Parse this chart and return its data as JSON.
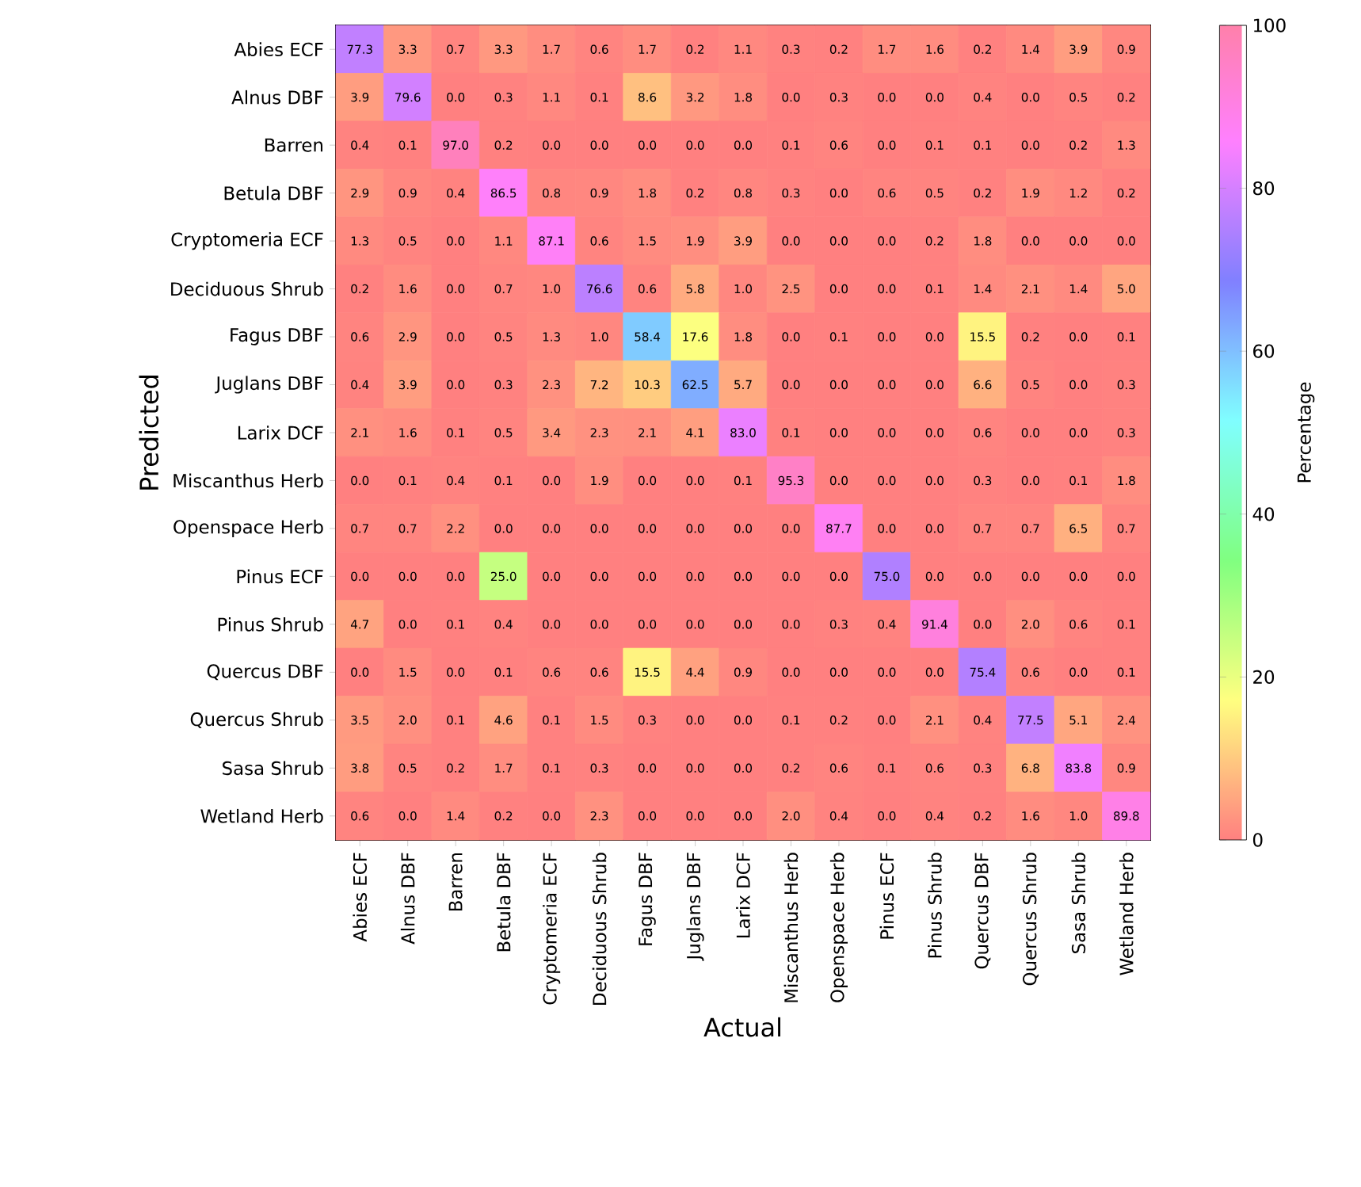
{
  "chart_data": {
    "type": "heatmap",
    "xlabel": "Actual",
    "ylabel": "Predicted",
    "clabel": "Percentage",
    "categories": [
      "Abies ECF",
      "Alnus DBF",
      "Barren",
      "Betula DBF",
      "Cryptomeria ECF",
      "Deciduous Shrub",
      "Fagus DBF",
      "Juglans DBF",
      "Larix DCF",
      "Miscanthus Herb",
      "Openspace Herb",
      "Pinus ECF",
      "Pinus Shrub",
      "Quercus DBF",
      "Quercus Shrub",
      "Sasa Shrub",
      "Wetland Herb"
    ],
    "y_categories": [
      "Abies ECF",
      "Alnus DBF",
      "Barren",
      "Betula DBF",
      "Cryptomeria ECF",
      "Deciduous Shrub",
      "Fagus DBF",
      "Juglans DBF",
      "Larix DCF",
      "Miscanthus Herb",
      "Openspace Herb",
      "Pinus ECF",
      "Pinus Shrub",
      "Quercus DBF",
      "Quercus Shrub",
      "Sasa Shrub",
      "Wetland Herb"
    ],
    "cells": [
      [
        77.3,
        3.3,
        0.7,
        3.3,
        1.7,
        0.6,
        1.7,
        0.2,
        1.1,
        0.3,
        0.2,
        1.7,
        1.6,
        0.2,
        1.4,
        3.9,
        0.9
      ],
      [
        3.9,
        79.6,
        0.0,
        0.3,
        1.1,
        0.1,
        8.6,
        3.2,
        1.8,
        0.0,
        0.3,
        0.0,
        0.0,
        0.4,
        0.0,
        0.5,
        0.2
      ],
      [
        0.4,
        0.1,
        97.0,
        0.2,
        0.0,
        0.0,
        0.0,
        0.0,
        0.0,
        0.1,
        0.6,
        0.0,
        0.1,
        0.1,
        0.0,
        0.2,
        1.3
      ],
      [
        2.9,
        0.9,
        0.4,
        86.5,
        0.8,
        0.9,
        1.8,
        0.2,
        0.8,
        0.3,
        0.0,
        0.6,
        0.5,
        0.2,
        1.9,
        1.2,
        0.2
      ],
      [
        1.3,
        0.5,
        0.0,
        1.1,
        87.1,
        0.6,
        1.5,
        1.9,
        3.9,
        0.0,
        0.0,
        0.0,
        0.2,
        1.8,
        0.0,
        0.0,
        0.0
      ],
      [
        0.2,
        1.6,
        0.0,
        0.7,
        1.0,
        76.6,
        0.6,
        5.8,
        1.0,
        2.5,
        0.0,
        0.0,
        0.1,
        1.4,
        2.1,
        1.4,
        5.0
      ],
      [
        0.6,
        2.9,
        0.0,
        0.5,
        1.3,
        1.0,
        58.4,
        17.6,
        1.8,
        0.0,
        0.1,
        0.0,
        0.0,
        15.5,
        0.2,
        0.0,
        0.1
      ],
      [
        0.4,
        3.9,
        0.0,
        0.3,
        2.3,
        7.2,
        10.3,
        62.5,
        5.7,
        0.0,
        0.0,
        0.0,
        0.0,
        6.6,
        0.5,
        0.0,
        0.3
      ],
      [
        2.1,
        1.6,
        0.1,
        0.5,
        3.4,
        2.3,
        2.1,
        4.1,
        83.0,
        0.1,
        0.0,
        0.0,
        0.0,
        0.6,
        0.0,
        0.0,
        0.3
      ],
      [
        0.0,
        0.1,
        0.4,
        0.1,
        0.0,
        1.9,
        0.0,
        0.0,
        0.1,
        95.3,
        0.0,
        0.0,
        0.0,
        0.3,
        0.0,
        0.1,
        1.8
      ],
      [
        0.7,
        0.7,
        2.2,
        0.0,
        0.0,
        0.0,
        0.0,
        0.0,
        0.0,
        0.0,
        87.7,
        0.0,
        0.0,
        0.7,
        0.7,
        6.5,
        0.7
      ],
      [
        0.0,
        0.0,
        0.0,
        25.0,
        0.0,
        0.0,
        0.0,
        0.0,
        0.0,
        0.0,
        0.0,
        75.0,
        0.0,
        0.0,
        0.0,
        0.0,
        0.0
      ],
      [
        4.7,
        0.0,
        0.1,
        0.4,
        0.0,
        0.0,
        0.0,
        0.0,
        0.0,
        0.0,
        0.3,
        0.4,
        91.4,
        0.0,
        2.0,
        0.6,
        0.1
      ],
      [
        0.0,
        1.5,
        0.0,
        0.1,
        0.6,
        0.6,
        15.5,
        4.4,
        0.9,
        0.0,
        0.0,
        0.0,
        0.0,
        75.4,
        0.6,
        0.0,
        0.1
      ],
      [
        3.5,
        2.0,
        0.1,
        4.6,
        0.1,
        1.5,
        0.3,
        0.0,
        0.0,
        0.1,
        0.2,
        0.0,
        2.1,
        0.4,
        77.5,
        5.1,
        2.4
      ],
      [
        3.8,
        0.5,
        0.2,
        1.7,
        0.1,
        0.3,
        0.0,
        0.0,
        0.0,
        0.2,
        0.6,
        0.1,
        0.6,
        0.3,
        6.8,
        83.8,
        0.9
      ],
      [
        0.6,
        0.0,
        1.4,
        0.2,
        0.0,
        2.3,
        0.0,
        0.0,
        0.0,
        2.0,
        0.4,
        0.0,
        0.4,
        0.2,
        1.6,
        1.0,
        89.8
      ]
    ],
    "cell_labels": [
      [
        "77.3",
        "3.3",
        "0.7",
        "3.3",
        "1.7",
        "0.6",
        "1.7",
        "0.2",
        "1.1",
        "0.3",
        "0.2",
        "1.7",
        "1.6",
        "0.2",
        "1.4",
        "3.9",
        "0.9"
      ],
      [
        "3.9",
        "79.6",
        "0.0",
        "0.3",
        "1.1",
        "0.1",
        "8.6",
        "3.2",
        "1.8",
        "0.0",
        "0.3",
        "0.0",
        "0.0",
        "0.4",
        "0.0",
        "0.5",
        "0.2"
      ],
      [
        "0.4",
        "0.1",
        "97.0",
        "0.2",
        "0.0",
        "0.0",
        "0.0",
        "0.0",
        "0.0",
        "0.1",
        "0.6",
        "0.0",
        "0.1",
        "0.1",
        "0.0",
        "0.2",
        "1.3"
      ],
      [
        "2.9",
        "0.9",
        "0.4",
        "86.5",
        "0.8",
        "0.9",
        "1.8",
        "0.2",
        "0.8",
        "0.3",
        "0.0",
        "0.6",
        "0.5",
        "0.2",
        "1.9",
        "1.2",
        "0.2"
      ],
      [
        "1.3",
        "0.5",
        "0.0",
        "1.1",
        "87.1",
        "0.6",
        "1.5",
        "1.9",
        "3.9",
        "0.0",
        "0.0",
        "0.0",
        "0.2",
        "1.8",
        "0.0",
        "0.0",
        "0.0"
      ],
      [
        "0.2",
        "1.6",
        "0.0",
        "0.7",
        "1.0",
        "76.6",
        "0.6",
        "5.8",
        "1.0",
        "2.5",
        "0.0",
        "0.0",
        "0.1",
        "1.4",
        "2.1",
        "1.4",
        "5.0"
      ],
      [
        "0.6",
        "2.9",
        "0.0",
        "0.5",
        "1.3",
        "1.0",
        "58.4",
        "17.6",
        "1.8",
        "0.0",
        "0.1",
        "0.0",
        "0.0",
        "15.5",
        "0.2",
        "0.0",
        "0.1"
      ],
      [
        "0.4",
        "3.9",
        "0.0",
        "0.3",
        "2.3",
        "7.2",
        "10.3",
        "62.5",
        "5.7",
        "0.0",
        "0.0",
        "0.0",
        "0.0",
        "6.6",
        "0.5",
        "0.0",
        "0.3"
      ],
      [
        "2.1",
        "1.6",
        "0.1",
        "0.5",
        "3.4",
        "2.3",
        "2.1",
        "4.1",
        "83.0",
        "0.1",
        "0.0",
        "0.0",
        "0.0",
        "0.6",
        "0.0",
        "0.0",
        "0.3"
      ],
      [
        "0.0",
        "0.1",
        "0.4",
        "0.1",
        "0.0",
        "1.9",
        "0.0",
        "0.0",
        "0.1",
        "95.3",
        "0.0",
        "0.0",
        "0.0",
        "0.3",
        "0.0",
        "0.1",
        "1.8"
      ],
      [
        "0.7",
        "0.7",
        "2.2",
        "0.0",
        "0.0",
        "0.0",
        "0.0",
        "0.0",
        "0.0",
        "0.0",
        "87.7",
        "0.0",
        "0.0",
        "0.7",
        "0.7",
        "6.5",
        "0.7"
      ],
      [
        "0.0",
        "0.0",
        "0.0",
        "25.0",
        "0.0",
        "0.0",
        "0.0",
        "0.0",
        "0.0",
        "0.0",
        "0.0",
        "75.0",
        "0.0",
        "0.0",
        "0.0",
        "0.0",
        "0.0"
      ],
      [
        "4.7",
        "0.0",
        "0.1",
        "0.4",
        "0.0",
        "0.0",
        "0.0",
        "0.0",
        "0.0",
        "0.0",
        "0.3",
        "0.4",
        "91.4",
        "0.0",
        "2.0",
        "0.6",
        "0.1"
      ],
      [
        "0.0",
        "1.5",
        "0.0",
        "0.1",
        "0.6",
        "0.6",
        "15.5",
        "4.4",
        "0.9",
        "0.0",
        "0.0",
        "0.0",
        "0.0",
        "75.4",
        "0.6",
        "0.0",
        "0.1"
      ],
      [
        "3.5",
        "2.0",
        "0.1",
        "4.6",
        "0.1",
        "1.5",
        "0.3",
        "0.0",
        "0.0",
        "0.1",
        "0.2",
        "0.0",
        "2.1",
        "0.4",
        "77.5",
        "5.1",
        "2.4"
      ],
      [
        "3.8",
        "0.5",
        "0.2",
        "1.7",
        "0.1",
        "0.3",
        "0.0",
        "0.0",
        "0.0",
        "0.2",
        "0.6",
        "0.1",
        "0.6",
        "0.3",
        "6.8",
        "83.8",
        "0.9"
      ],
      [
        "0.6",
        "0.0",
        "1.4",
        "0.2",
        "0.0",
        "2.3",
        "0.0",
        "0.0",
        "0.0",
        "2.0",
        "0.4",
        "0.0",
        "0.4",
        "0.2",
        "1.6",
        "1.0",
        "89.8"
      ]
    ],
    "clim": [
      0,
      100
    ],
    "cticks": [
      0,
      20,
      40,
      60,
      80,
      100
    ],
    "data_labels": true
  }
}
